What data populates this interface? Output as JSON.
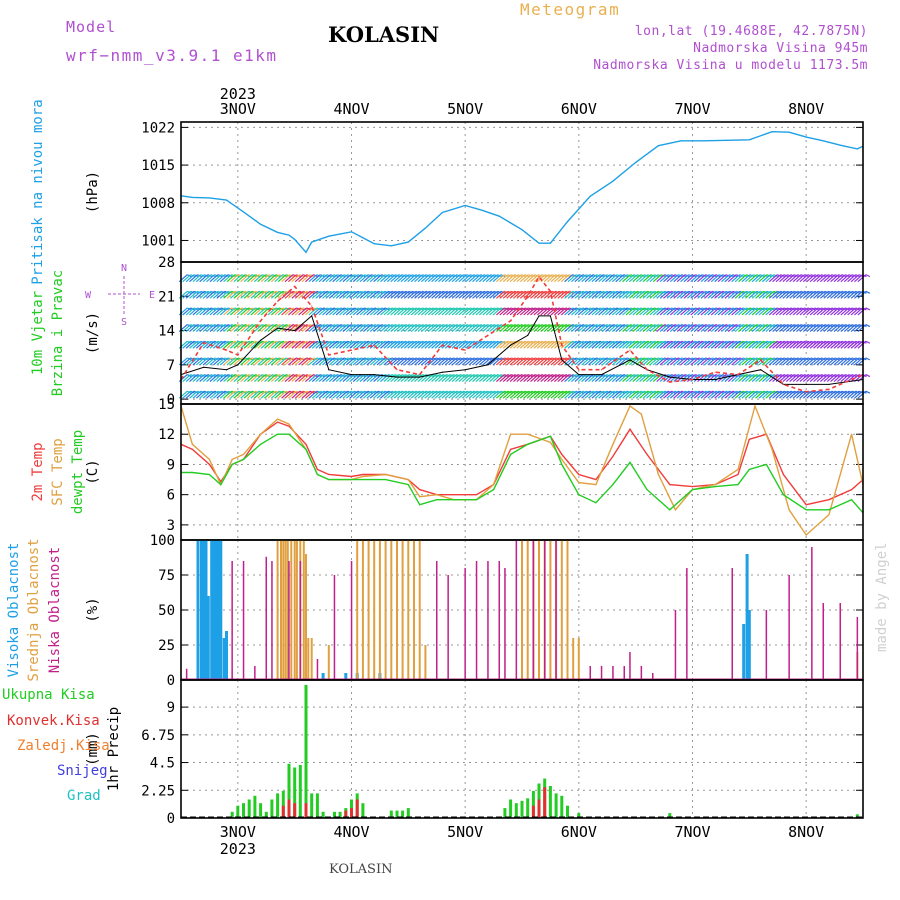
{
  "header": {
    "model_label": "Model",
    "model_name": "wrf−nmm_v3.9.1  e1km",
    "title": "KOLASIN",
    "meteogram_label": "Meteogram",
    "lonlat": "lon,lat (19.4688E, 42.7875N)",
    "elevation": "Nadmorska Visina 945m",
    "model_elevation": "Nadmorska Visina u modelu 1173.5m",
    "bottom_title": "KOLASIN",
    "credit": "made by Angel"
  },
  "colors": {
    "pressure": "#1ea0e6",
    "temp2m": "#f03c3c",
    "sfc": "#e0a040",
    "dewpt": "#22cc22",
    "high_cloud": "#1ea0e6",
    "mid_cloud": "#e0a040",
    "low_cloud": "#c0208a",
    "precip": "#22cc22",
    "convective": "#e03030",
    "frozen": "#f08030",
    "snow": "#4040e0",
    "grad": "#20c0c0",
    "purple": "#b050d0",
    "gold": "#e8b050"
  },
  "chart_data": [
    {
      "type": "line",
      "panel": "pressure",
      "ylabel_rotated": "Pritisak na nivou mora",
      "unit": "(hPa)",
      "yticks": [
        1001,
        1008,
        1015,
        1022
      ],
      "ylim": [
        997,
        1023
      ],
      "x_day_labels": [
        "3NOV",
        "4NOV",
        "5NOV",
        "6NOV",
        "7NOV",
        "8NOV"
      ],
      "x_year_label": "2023",
      "xlim_days": [
        2.5,
        8.5
      ],
      "grid": true,
      "series": [
        {
          "x": [
            2.5,
            2.6,
            2.75,
            2.9,
            3.05,
            3.2,
            3.35,
            3.45,
            3.5,
            3.6,
            3.65,
            3.8,
            4.0,
            4.1,
            4.2,
            4.35,
            4.5,
            4.65,
            4.8,
            5.0,
            5.15,
            5.3,
            5.5,
            5.65,
            5.75,
            5.9,
            6.1,
            6.3,
            6.5,
            6.7,
            6.9,
            7.1,
            7.3,
            7.5,
            7.7,
            7.85,
            8.0,
            8.15,
            8.3,
            8.45,
            8.5
          ],
          "y": [
            1009.3,
            1009,
            1008.9,
            1008.5,
            1006.3,
            1004,
            1002.5,
            1002,
            1001.2,
            998.8,
            1000.7,
            1001.8,
            1002.6,
            1001.5,
            1000.4,
            1000,
            1000.7,
            1003.3,
            1006.2,
            1007.5,
            1006.6,
            1005.5,
            1003,
            1000.5,
            1000.5,
            1004.5,
            1009.2,
            1012,
            1015.5,
            1018.6,
            1019.5,
            1019.5,
            1019.6,
            1019.7,
            1021.2,
            1021.1,
            1020.2,
            1019.5,
            1018.7,
            1018,
            1018.5
          ]
        }
      ]
    },
    {
      "type": "line",
      "panel": "wind",
      "ylabel_rotated": [
        "10m Vjetar",
        "Brzina i Pravac"
      ],
      "unit": "(m/s)",
      "yticks": [
        0,
        7,
        14,
        21,
        28
      ],
      "ylim": [
        -1,
        28
      ],
      "compass": [
        "N",
        "W",
        "E",
        "S"
      ],
      "series": [
        {
          "x": [
            2.5,
            2.7,
            2.9,
            3.0,
            3.2,
            3.35,
            3.5,
            3.65,
            3.8,
            4.0,
            4.2,
            4.4,
            4.6,
            4.8,
            5.0,
            5.2,
            5.4,
            5.55,
            5.65,
            5.75,
            5.85,
            6.0,
            6.2,
            6.45,
            6.6,
            6.8,
            7.0,
            7.2,
            7.4,
            7.6,
            7.8,
            8.0,
            8.2,
            8.5
          ],
          "y": [
            5,
            6.5,
            6,
            7,
            12,
            14.5,
            14,
            17,
            6,
            5,
            5,
            4.5,
            4.5,
            5.5,
            6,
            7,
            11,
            13,
            17,
            17,
            8,
            5,
            5,
            8,
            6,
            4.5,
            4,
            4,
            5,
            6,
            3,
            3,
            3,
            4
          ]
        },
        {
          "x": [
            2.5,
            2.7,
            2.9,
            3.0,
            3.2,
            3.35,
            3.5,
            3.65,
            3.8,
            4.0,
            4.2,
            4.4,
            4.6,
            4.8,
            5.0,
            5.2,
            5.4,
            5.55,
            5.65,
            5.75,
            5.85,
            6.0,
            6.2,
            6.45,
            6.6,
            6.8,
            7.0,
            7.2,
            7.4,
            7.6,
            7.8,
            8.0,
            8.2,
            8.5
          ],
          "y": [
            4,
            11.5,
            10,
            9,
            16,
            20,
            23,
            19,
            9,
            10,
            11,
            6,
            5,
            11,
            10,
            13,
            16,
            21,
            25,
            22,
            11,
            6,
            6,
            10,
            6,
            3.5,
            4,
            5.5,
            5,
            8,
            3,
            1.5,
            2,
            5
          ]
        }
      ]
    },
    {
      "type": "line",
      "panel": "temperature",
      "ylabel_rotated": [
        "2m Temp",
        "SFC Temp",
        "dewpt Temp"
      ],
      "unit": "(C)",
      "yticks": [
        3,
        6,
        9,
        12,
        15
      ],
      "ylim": [
        1.5,
        15
      ],
      "series": [
        {
          "name": "2m Temp",
          "x": [
            2.5,
            2.6,
            2.75,
            2.85,
            2.95,
            3.05,
            3.2,
            3.35,
            3.45,
            3.6,
            3.7,
            3.8,
            4.0,
            4.1,
            4.3,
            4.5,
            4.6,
            4.75,
            4.9,
            5.1,
            5.25,
            5.4,
            5.55,
            5.75,
            5.85,
            6.0,
            6.15,
            6.3,
            6.45,
            6.6,
            6.8,
            7.0,
            7.2,
            7.4,
            7.5,
            7.65,
            7.8,
            8.0,
            8.2,
            8.4,
            8.5
          ],
          "y": [
            11,
            10.5,
            9,
            7.3,
            9,
            9.5,
            12,
            13.2,
            12.8,
            11,
            8.5,
            8,
            7.8,
            8,
            8,
            7.5,
            6.5,
            6,
            6,
            6,
            7,
            10.5,
            11,
            11.8,
            10,
            8,
            7.5,
            9.8,
            12.5,
            10,
            7,
            6.8,
            7,
            8,
            11.5,
            12,
            8,
            5,
            5.5,
            6.5,
            7.5
          ]
        },
        {
          "name": "SFC Temp",
          "x": [
            2.5,
            2.6,
            2.75,
            2.85,
            2.95,
            3.05,
            3.2,
            3.35,
            3.45,
            3.6,
            3.7,
            3.8,
            4.0,
            4.1,
            4.3,
            4.5,
            4.6,
            4.75,
            4.9,
            5.1,
            5.25,
            5.4,
            5.55,
            5.75,
            5.85,
            6.0,
            6.15,
            6.3,
            6.45,
            6.55,
            6.7,
            6.85,
            7.0,
            7.2,
            7.4,
            7.55,
            7.7,
            7.85,
            8.0,
            8.2,
            8.4,
            8.5
          ],
          "y": [
            14.8,
            11,
            9.5,
            7,
            9.5,
            10,
            12,
            13.5,
            13,
            10.5,
            8,
            7.5,
            7.5,
            7.8,
            8,
            7.5,
            5.8,
            6,
            5.5,
            5.5,
            7,
            12,
            12,
            11.2,
            9.5,
            7.2,
            7,
            11,
            14.8,
            14,
            8,
            4.5,
            6.5,
            7,
            8.5,
            14.8,
            10.5,
            4.5,
            2,
            4,
            12,
            7
          ]
        },
        {
          "name": "dewpt Temp",
          "x": [
            2.5,
            2.6,
            2.75,
            2.85,
            2.95,
            3.05,
            3.2,
            3.35,
            3.45,
            3.6,
            3.7,
            3.8,
            4.0,
            4.1,
            4.3,
            4.5,
            4.6,
            4.75,
            4.9,
            5.1,
            5.25,
            5.4,
            5.55,
            5.75,
            5.85,
            6.0,
            6.15,
            6.3,
            6.45,
            6.6,
            6.8,
            7.0,
            7.2,
            7.4,
            7.5,
            7.65,
            7.8,
            8.0,
            8.2,
            8.4,
            8.5
          ],
          "y": [
            8.2,
            8.2,
            8,
            7,
            9,
            9.5,
            11,
            12,
            12,
            10.5,
            8,
            7.5,
            7.5,
            7.5,
            7.5,
            7,
            5,
            5.5,
            5.5,
            5.5,
            6.5,
            10,
            11,
            11.8,
            9,
            6,
            5.2,
            7,
            9.2,
            6.5,
            4.5,
            6.5,
            6.8,
            7,
            8.5,
            9,
            6,
            4.5,
            4.5,
            5.5,
            4.2
          ]
        }
      ]
    },
    {
      "type": "bar",
      "panel": "cloud",
      "ylabel_rotated": [
        "Visoka Oblacnost",
        "Srednja Oblacnost",
        "Niska Oblacnost"
      ],
      "unit": "(%)",
      "yticks": [
        0,
        25,
        50,
        75,
        100
      ],
      "ylim": [
        0,
        100
      ],
      "series": [
        {
          "name": "Visoka Oblacnost",
          "x": [
            2.65,
            2.68,
            2.7,
            2.72,
            2.74,
            2.77,
            2.79,
            2.81,
            2.83,
            2.85,
            2.88,
            2.9,
            3.75,
            3.95,
            4.05,
            4.25,
            7.45,
            7.48,
            7.5
          ],
          "values": [
            100,
            100,
            100,
            100,
            60,
            100,
            100,
            100,
            100,
            100,
            30,
            35,
            5,
            5,
            5,
            5,
            40,
            90,
            50
          ]
        },
        {
          "name": "Srednja Oblacnost",
          "x": [
            3.35,
            3.38,
            3.4,
            3.42,
            3.44,
            3.47,
            3.5,
            3.52,
            3.55,
            3.58,
            3.6,
            3.62,
            3.65,
            3.8,
            4.05,
            4.1,
            4.15,
            4.2,
            4.25,
            4.3,
            4.35,
            4.4,
            4.45,
            4.5,
            4.55,
            4.6,
            4.65,
            5.5,
            5.55,
            5.6,
            5.65,
            5.7,
            5.75,
            5.8,
            5.85,
            5.9,
            5.95,
            6.0,
            8.45
          ],
          "values": [
            100,
            100,
            100,
            100,
            100,
            100,
            100,
            100,
            100,
            100,
            90,
            30,
            30,
            25,
            100,
            100,
            100,
            100,
            100,
            100,
            100,
            100,
            100,
            100,
            100,
            100,
            25,
            100,
            100,
            100,
            100,
            100,
            100,
            100,
            100,
            100,
            30,
            30,
            20
          ]
        },
        {
          "name": "Niska Oblacnost",
          "x": [
            2.55,
            2.95,
            3.05,
            3.15,
            3.25,
            3.3,
            3.45,
            3.55,
            3.7,
            3.85,
            4.0,
            4.75,
            4.85,
            5.0,
            5.1,
            5.2,
            5.3,
            5.35,
            5.45,
            5.6,
            5.7,
            5.8,
            6.1,
            6.2,
            6.3,
            6.4,
            6.45,
            6.55,
            6.65,
            6.85,
            6.95,
            7.35,
            7.65,
            7.85,
            8.05,
            8.15,
            8.3,
            8.45
          ],
          "values": [
            8,
            85,
            85,
            10,
            88,
            85,
            85,
            85,
            15,
            75,
            85,
            85,
            75,
            80,
            85,
            85,
            85,
            80,
            100,
            100,
            100,
            100,
            10,
            10,
            10,
            10,
            20,
            10,
            5,
            50,
            80,
            80,
            50,
            75,
            95,
            55,
            55,
            45
          ]
        }
      ]
    },
    {
      "type": "bar",
      "panel": "precip",
      "ylabel_rotated": "1hr Precip",
      "unit": "(mm)",
      "legend": [
        "Ukupna Kisa",
        "Konvek.Kisa",
        "Zaledj.Kisa",
        "Snijeg",
        "Grad"
      ],
      "yticks": [
        0,
        2.25,
        4.5,
        6.75,
        9
      ],
      "ylim": [
        0,
        11.2
      ],
      "series": [
        {
          "name": "Ukupna Kisa",
          "x": [
            2.95,
            3.0,
            3.05,
            3.1,
            3.15,
            3.2,
            3.25,
            3.3,
            3.35,
            3.4,
            3.45,
            3.5,
            3.55,
            3.6,
            3.65,
            3.7,
            3.75,
            3.85,
            3.9,
            3.95,
            4.0,
            4.05,
            4.1,
            4.35,
            4.4,
            4.45,
            4.5,
            5.35,
            5.4,
            5.45,
            5.5,
            5.55,
            5.6,
            5.65,
            5.7,
            5.75,
            5.8,
            5.85,
            5.9,
            6.0,
            6.8,
            8.45
          ],
          "values": [
            0.5,
            1,
            1.2,
            1.5,
            1.8,
            1.2,
            0.5,
            1.5,
            2,
            2.2,
            4.4,
            4.1,
            4.3,
            10.8,
            2,
            2,
            0.5,
            0.5,
            0.5,
            0.8,
            1.5,
            2,
            1.2,
            0.6,
            0.6,
            0.6,
            0.8,
            0.8,
            1.5,
            1.2,
            1.4,
            1.6,
            2.2,
            2.8,
            3.2,
            2.6,
            2,
            1.8,
            1,
            0.4,
            0.4,
            0.3
          ]
        },
        {
          "name": "Konvek.Kisa",
          "x": [
            3.4,
            3.45,
            3.5,
            3.6,
            3.95,
            4.0,
            4.05,
            5.6,
            5.65,
            5.7
          ],
          "values": [
            1,
            1.5,
            1.2,
            1.2,
            0.6,
            0.8,
            1.5,
            1,
            1.5,
            2.5
          ]
        }
      ]
    }
  ]
}
